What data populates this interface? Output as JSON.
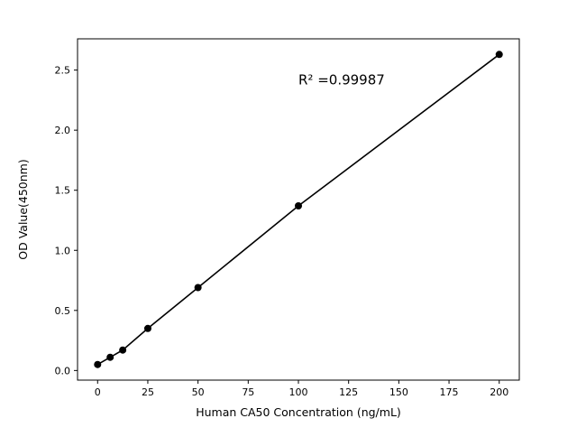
{
  "figure": {
    "background": "#ffffff"
  },
  "chart_data": {
    "type": "line",
    "title": "",
    "xlabel": "Human CA50 Concentration (ng/mL)",
    "ylabel": "OD Value(450nm)",
    "x": [
      0,
      6.25,
      12.5,
      25,
      50,
      100,
      200
    ],
    "y": [
      0.05,
      0.11,
      0.17,
      0.35,
      0.69,
      1.37,
      2.63
    ],
    "marker": "filled-circle",
    "line_color": "#000000",
    "marker_color": "#000000",
    "xlim": [
      -10,
      210
    ],
    "ylim": [
      -0.08,
      2.76
    ],
    "xticks": [
      0,
      25,
      50,
      75,
      100,
      125,
      150,
      175,
      200
    ],
    "yticks": [
      0.0,
      0.5,
      1.0,
      1.5,
      2.0,
      2.5
    ],
    "grid": false,
    "legend_position": "none",
    "annotation": {
      "text": "R² =0.99987",
      "x": 100,
      "y": 2.38
    }
  }
}
